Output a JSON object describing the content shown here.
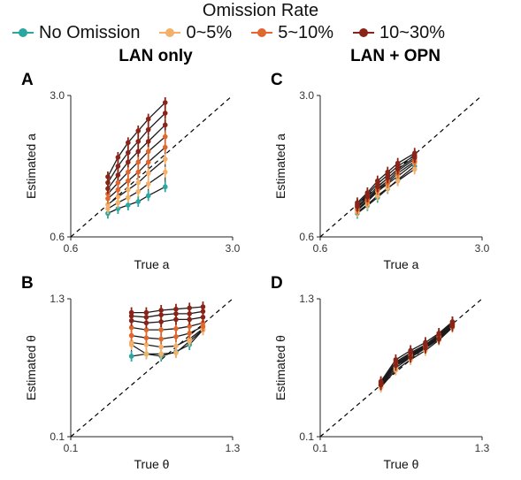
{
  "legend": {
    "title": "Omission Rate",
    "items": [
      {
        "label": "No Omission",
        "color": "#2aa7a0"
      },
      {
        "label": "0~5%",
        "color": "#f3b06a"
      },
      {
        "label": "5~10%",
        "color": "#e0672e"
      },
      {
        "label": "10~30%",
        "color": "#8b2418"
      }
    ]
  },
  "column_titles": [
    "LAN only",
    "LAN + OPN"
  ],
  "chart_data": [
    {
      "type": "line",
      "panel": "A",
      "xlabel": "True a",
      "ylabel": "Estimated a",
      "xlim": [
        0.6,
        3.0
      ],
      "ylim": [
        0.6,
        3.0
      ],
      "xticks": [
        "0.6",
        "3.0"
      ],
      "yticks": [
        "0.6",
        "3.0"
      ],
      "reference_line": "identity, dashed",
      "x": [
        1.15,
        1.3,
        1.45,
        1.6,
        1.75,
        2.0
      ],
      "series": [
        {
          "values": [
            1.0,
            1.08,
            1.14,
            1.2,
            1.3,
            1.45
          ],
          "color": "#2aa7a0"
        },
        {
          "values": [
            1.08,
            1.18,
            1.27,
            1.37,
            1.5,
            1.7
          ],
          "color": "#f3b06a"
        },
        {
          "values": [
            1.15,
            1.28,
            1.4,
            1.52,
            1.68,
            1.92
          ],
          "color": "#f3b06a"
        },
        {
          "values": [
            1.25,
            1.4,
            1.55,
            1.7,
            1.87,
            2.12
          ],
          "color": "#e0672e"
        },
        {
          "values": [
            1.33,
            1.52,
            1.7,
            1.87,
            2.05,
            2.3
          ],
          "color": "#e0672e"
        },
        {
          "values": [
            1.42,
            1.65,
            1.87,
            2.05,
            2.22,
            2.5
          ],
          "color": "#8b2418"
        },
        {
          "values": [
            1.52,
            1.8,
            2.03,
            2.22,
            2.42,
            2.7
          ],
          "color": "#8b2418"
        },
        {
          "values": [
            1.62,
            1.95,
            2.2,
            2.4,
            2.6,
            2.88
          ],
          "color": "#8b2418"
        }
      ]
    },
    {
      "type": "line",
      "panel": "C",
      "xlabel": "True a",
      "ylabel": "Estimated a",
      "xlim": [
        0.6,
        3.0
      ],
      "ylim": [
        0.6,
        3.0
      ],
      "xticks": [
        "0.6",
        "3.0"
      ],
      "yticks": [
        "0.6",
        "3.0"
      ],
      "reference_line": "identity, dashed",
      "x": [
        1.15,
        1.3,
        1.45,
        1.6,
        1.75,
        2.0
      ],
      "series": [
        {
          "values": [
            1.0,
            1.13,
            1.27,
            1.42,
            1.57,
            1.8
          ],
          "color": "#2aa7a0"
        },
        {
          "values": [
            1.02,
            1.15,
            1.3,
            1.43,
            1.55,
            1.75
          ],
          "color": "#f3b06a"
        },
        {
          "values": [
            1.05,
            1.2,
            1.37,
            1.5,
            1.63,
            1.85
          ],
          "color": "#f3b06a"
        },
        {
          "values": [
            1.07,
            1.22,
            1.4,
            1.52,
            1.68,
            1.88
          ],
          "color": "#e0672e"
        },
        {
          "values": [
            1.1,
            1.25,
            1.42,
            1.55,
            1.72,
            1.92
          ],
          "color": "#e0672e"
        },
        {
          "values": [
            1.12,
            1.28,
            1.45,
            1.6,
            1.75,
            1.95
          ],
          "color": "#8b2418"
        },
        {
          "values": [
            1.15,
            1.32,
            1.5,
            1.65,
            1.8,
            1.98
          ],
          "color": "#8b2418"
        },
        {
          "values": [
            1.18,
            1.35,
            1.55,
            1.7,
            1.85,
            2.02
          ],
          "color": "#8b2418"
        }
      ]
    },
    {
      "type": "line",
      "panel": "B",
      "xlabel": "True θ",
      "ylabel": "Estimated θ",
      "xlim": [
        0.1,
        1.3
      ],
      "ylim": [
        0.1,
        1.3
      ],
      "xticks": [
        "0.1",
        "1.3"
      ],
      "yticks": [
        "0.1",
        "1.3"
      ],
      "reference_line": "identity, dashed",
      "x": [
        0.55,
        0.66,
        0.77,
        0.88,
        0.98,
        1.08
      ],
      "series": [
        {
          "values": [
            0.8,
            0.82,
            0.8,
            0.84,
            0.9,
            1.03
          ],
          "color": "#2aa7a0"
        },
        {
          "values": [
            0.9,
            0.82,
            0.82,
            0.83,
            0.93,
            1.03
          ],
          "color": "#f3b06a"
        },
        {
          "values": [
            0.92,
            0.9,
            0.88,
            0.89,
            0.95,
            1.04
          ],
          "color": "#f3b06a"
        },
        {
          "values": [
            0.98,
            0.96,
            0.95,
            0.97,
            1.0,
            1.06
          ],
          "color": "#e0672e"
        },
        {
          "values": [
            1.05,
            1.03,
            1.03,
            1.04,
            1.06,
            1.09
          ],
          "color": "#e0672e"
        },
        {
          "values": [
            1.11,
            1.09,
            1.1,
            1.12,
            1.12,
            1.14
          ],
          "color": "#8b2418"
        },
        {
          "values": [
            1.15,
            1.14,
            1.16,
            1.17,
            1.17,
            1.19
          ],
          "color": "#8b2418"
        },
        {
          "values": [
            1.18,
            1.18,
            1.2,
            1.21,
            1.22,
            1.23
          ],
          "color": "#8b2418"
        }
      ]
    },
    {
      "type": "line",
      "panel": "D",
      "xlabel": "True θ",
      "ylabel": "Estimated θ",
      "xlim": [
        0.1,
        1.3
      ],
      "ylim": [
        0.1,
        1.3
      ],
      "xticks": [
        "0.1",
        "1.3"
      ],
      "yticks": [
        "0.1",
        "1.3"
      ],
      "reference_line": "identity, dashed",
      "x": [
        0.55,
        0.66,
        0.77,
        0.88,
        0.98,
        1.08
      ],
      "series": [
        {
          "values": [
            0.55,
            0.73,
            0.81,
            0.89,
            0.98,
            1.1
          ],
          "color": "#2aa7a0"
        },
        {
          "values": [
            0.53,
            0.68,
            0.77,
            0.85,
            0.94,
            1.05
          ],
          "color": "#f3b06a"
        },
        {
          "values": [
            0.54,
            0.7,
            0.79,
            0.87,
            0.96,
            1.07
          ],
          "color": "#f3b06a"
        },
        {
          "values": [
            0.55,
            0.72,
            0.8,
            0.88,
            0.97,
            1.08
          ],
          "color": "#e0672e"
        },
        {
          "values": [
            0.56,
            0.74,
            0.82,
            0.89,
            0.98,
            1.09
          ],
          "color": "#e0672e"
        },
        {
          "values": [
            0.55,
            0.72,
            0.79,
            0.87,
            0.95,
            1.06
          ],
          "color": "#8b2418"
        },
        {
          "values": [
            0.57,
            0.75,
            0.83,
            0.9,
            0.99,
            1.08
          ],
          "color": "#8b2418"
        },
        {
          "values": [
            0.58,
            0.77,
            0.85,
            0.92,
            1.0,
            1.1
          ],
          "color": "#8b2418"
        }
      ]
    }
  ]
}
